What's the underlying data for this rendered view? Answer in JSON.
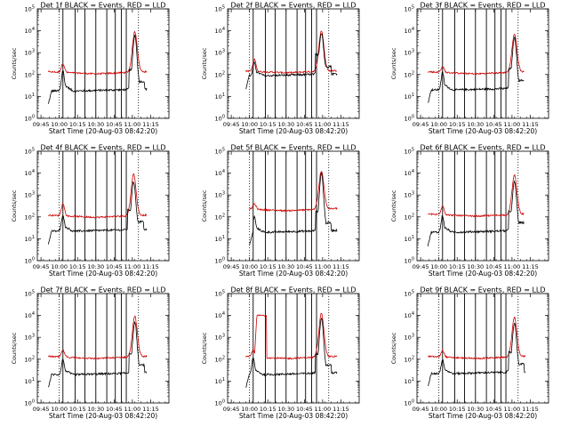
{
  "chart_data": {
    "type": "line",
    "layout": "3x3 grid of small multiples",
    "xlabel": "Start Time (20-Aug-03 08:42:20)",
    "ylabel": "Counts/sec",
    "x_ticks": [
      "09:45",
      "10:00",
      "10:15",
      "10:30",
      "10:45",
      "11:00",
      "11:15"
    ],
    "x_tick_minutes": [
      585,
      600,
      615,
      630,
      645,
      660,
      675
    ],
    "xlim_minutes": [
      582,
      690
    ],
    "y_ticks": [
      "10^0",
      "10^1",
      "10^2",
      "10^3",
      "10^4",
      "10^5"
    ],
    "ylim_log10": [
      0,
      5
    ],
    "event_line_minutes": [
      603,
      613,
      621,
      630,
      639,
      646,
      651,
      655
    ],
    "series_names": [
      "Events",
      "LLD"
    ],
    "colors": {
      "events": "#000000",
      "lld": "#d00000"
    },
    "panels": [
      {
        "title": "Det 1f BLACK = Events, RED = LLD",
        "start": 591,
        "end": 672,
        "events_base": 1.25,
        "lld_base": 2.05,
        "ev_pre_peak": 2.2,
        "lld_pre_peak": 2.5,
        "pre_center": 603,
        "flare_peak_events": 3.8,
        "flare_peak_lld": 3.95,
        "flare_center": 662,
        "bump": 0
      },
      {
        "title": "Det 2f BLACK = Events, RED = LLD",
        "start": 597,
        "end": 672,
        "events_base": 1.95,
        "lld_base": 2.1,
        "ev_pre_peak": 2.55,
        "lld_pre_peak": 2.7,
        "pre_center": 604,
        "flare_peak_events": 3.9,
        "flare_peak_lld": 4.0,
        "flare_center": 659,
        "bump": 0
      },
      {
        "title": "Det 3f BLACK = Events, RED = LLD",
        "start": 591,
        "end": 670,
        "events_base": 1.3,
        "lld_base": 2.05,
        "ev_pre_peak": 2.1,
        "lld_pre_peak": 2.35,
        "pre_center": 603,
        "flare_peak_events": 3.7,
        "flare_peak_lld": 3.85,
        "flare_center": 662,
        "bump": 0
      },
      {
        "title": "Det 4f BLACK = Events, RED = LLD",
        "start": 591,
        "end": 672,
        "events_base": 1.35,
        "lld_base": 2.0,
        "ev_pre_peak": 2.1,
        "lld_pre_peak": 2.6,
        "pre_center": 603,
        "flare_peak_events": 3.6,
        "flare_peak_lld": 3.95,
        "flare_center": 661,
        "bump": 0
      },
      {
        "title": "Det 5f BLACK = Events, RED = LLD",
        "start": 600,
        "end": 672,
        "events_base": 1.3,
        "lld_base": 2.3,
        "ev_pre_peak": 2.0,
        "lld_pre_peak": 2.6,
        "pre_center": 604,
        "flare_peak_events": 4.0,
        "flare_peak_lld": 4.1,
        "flare_center": 659,
        "bump": 0
      },
      {
        "title": "Det 6f BLACK = Events, RED = LLD",
        "start": 591,
        "end": 670,
        "events_base": 1.3,
        "lld_base": 2.05,
        "ev_pre_peak": 2.05,
        "lld_pre_peak": 2.5,
        "pre_center": 603,
        "flare_peak_events": 3.6,
        "flare_peak_lld": 3.9,
        "flare_center": 662,
        "bump": 0
      },
      {
        "title": "Det 7f BLACK = Events, RED = LLD",
        "start": 591,
        "end": 672,
        "events_base": 1.3,
        "lld_base": 2.05,
        "ev_pre_peak": 2.0,
        "lld_pre_peak": 2.4,
        "pre_center": 603,
        "flare_peak_events": 3.7,
        "flare_peak_lld": 3.95,
        "flare_center": 662,
        "bump": 0
      },
      {
        "title": "Det 8f BLACK = Events, RED = LLD",
        "start": 597,
        "end": 672,
        "events_base": 1.3,
        "lld_base": 2.05,
        "ev_pre_peak": 2.05,
        "lld_pre_peak": 2.4,
        "pre_center": 603,
        "flare_peak_events": 3.9,
        "flare_peak_lld": 4.1,
        "flare_center": 659,
        "bump": 1
      },
      {
        "title": "Det 9f BLACK = Events, RED = LLD",
        "start": 591,
        "end": 671,
        "events_base": 1.35,
        "lld_base": 2.05,
        "ev_pre_peak": 2.0,
        "lld_pre_peak": 2.4,
        "pre_center": 603,
        "flare_peak_events": 3.65,
        "flare_peak_lld": 3.9,
        "flare_center": 662,
        "bump": 0
      }
    ]
  }
}
